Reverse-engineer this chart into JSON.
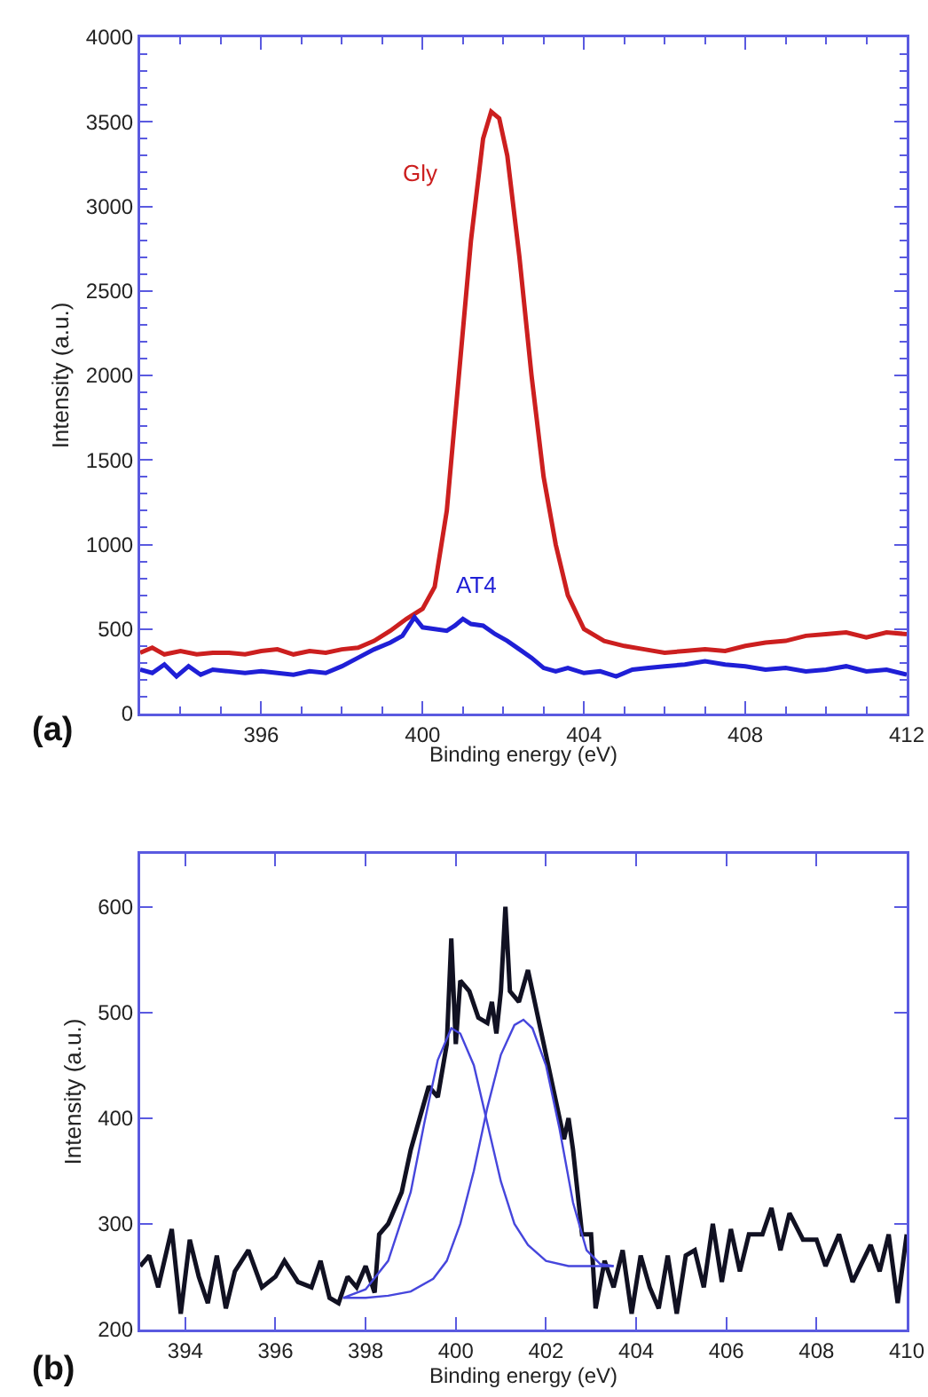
{
  "chart_data": [
    {
      "type": "line",
      "xlabel": "Binding energy (eV)",
      "ylabel": "Intensity (a.u.)",
      "annotations": [
        "(a)"
      ],
      "xlim": [
        393,
        412
      ],
      "ylim": [
        0,
        4000
      ],
      "xticks": [
        396,
        400,
        404,
        408,
        412
      ],
      "yticks": [
        0,
        500,
        1000,
        1500,
        2000,
        2500,
        3000,
        3500,
        4000
      ],
      "grid": false,
      "legend": false,
      "marker": "none",
      "line_style": "solid",
      "series": [
        {
          "name": "Gly",
          "color": "#cc1f1f",
          "x": [
            393,
            393.3,
            393.6,
            394,
            394.4,
            394.8,
            395.2,
            395.6,
            396,
            396.4,
            396.8,
            397.2,
            397.6,
            398,
            398.4,
            398.8,
            399.2,
            399.6,
            400,
            400.3,
            400.6,
            400.9,
            401.2,
            401.5,
            401.7,
            401.9,
            402.1,
            402.4,
            402.7,
            403,
            403.3,
            403.6,
            404,
            404.5,
            405,
            405.5,
            406,
            406.5,
            407,
            407.5,
            408,
            408.5,
            409,
            409.5,
            410,
            410.5,
            411,
            411.5,
            412
          ],
          "values": [
            360,
            390,
            350,
            370,
            350,
            360,
            360,
            350,
            370,
            380,
            350,
            370,
            360,
            380,
            390,
            430,
            490,
            560,
            620,
            750,
            1200,
            2000,
            2800,
            3400,
            3560,
            3520,
            3300,
            2700,
            2000,
            1400,
            1000,
            700,
            500,
            430,
            400,
            380,
            360,
            370,
            380,
            370,
            400,
            420,
            430,
            460,
            470,
            480,
            450,
            480,
            470
          ]
        },
        {
          "name": "AT4",
          "color": "#1f1fd6",
          "x": [
            393,
            393.3,
            393.6,
            393.9,
            394.2,
            394.5,
            394.8,
            395.2,
            395.6,
            396,
            396.4,
            396.8,
            397.2,
            397.6,
            398,
            398.4,
            398.8,
            399.2,
            399.5,
            399.8,
            400,
            400.3,
            400.6,
            400.8,
            401,
            401.2,
            401.5,
            401.8,
            402.1,
            402.4,
            402.7,
            403,
            403.3,
            403.6,
            404,
            404.4,
            404.8,
            405.2,
            405.6,
            406,
            406.5,
            407,
            407.5,
            408,
            408.5,
            409,
            409.5,
            410,
            410.5,
            411,
            411.5,
            412
          ],
          "values": [
            260,
            240,
            290,
            220,
            280,
            230,
            260,
            250,
            240,
            250,
            240,
            230,
            250,
            240,
            280,
            330,
            380,
            420,
            460,
            570,
            510,
            500,
            490,
            520,
            560,
            530,
            520,
            470,
            430,
            380,
            330,
            270,
            250,
            270,
            240,
            250,
            220,
            260,
            270,
            280,
            290,
            310,
            290,
            280,
            260,
            270,
            250,
            260,
            280,
            250,
            260,
            230
          ]
        }
      ]
    },
    {
      "type": "line",
      "xlabel": "Binding energy (eV)",
      "ylabel": "Intensity (a.u.)",
      "annotations": [
        "(b)"
      ],
      "xlim": [
        393,
        410
      ],
      "ylim": [
        200,
        650
      ],
      "xticks": [
        394,
        396,
        398,
        400,
        402,
        404,
        406,
        408,
        410
      ],
      "yticks": [
        200,
        300,
        400,
        500,
        600
      ],
      "grid": false,
      "legend": false,
      "marker": "none",
      "line_style": "solid",
      "series": [
        {
          "color": "#111122",
          "x": [
            393,
            393.2,
            393.4,
            393.7,
            393.9,
            394.1,
            394.3,
            394.5,
            394.7,
            394.9,
            395.1,
            395.4,
            395.7,
            396,
            396.2,
            396.5,
            396.8,
            397,
            397.2,
            397.4,
            397.6,
            397.8,
            398,
            398.2,
            398.3,
            398.5,
            398.8,
            399,
            399.2,
            399.4,
            399.6,
            399.8,
            399.9,
            400,
            400.1,
            400.3,
            400.5,
            400.7,
            400.8,
            400.9,
            401,
            401.1,
            401.2,
            401.4,
            401.6,
            401.8,
            402,
            402.2,
            402.4,
            402.5,
            402.6,
            402.8,
            403,
            403.1,
            403.3,
            403.5,
            403.7,
            403.9,
            404.1,
            404.3,
            404.5,
            404.7,
            404.9,
            405.1,
            405.3,
            405.5,
            405.7,
            405.9,
            406.1,
            406.3,
            406.5,
            406.8,
            407,
            407.2,
            407.4,
            407.7,
            408,
            408.2,
            408.5,
            408.8,
            409.2,
            409.4,
            409.6,
            409.8,
            410
          ],
          "values": [
            260,
            270,
            240,
            295,
            215,
            285,
            250,
            225,
            270,
            220,
            255,
            275,
            240,
            250,
            265,
            245,
            240,
            265,
            230,
            225,
            250,
            240,
            260,
            235,
            290,
            300,
            330,
            370,
            400,
            430,
            420,
            470,
            570,
            470,
            530,
            520,
            495,
            490,
            510,
            480,
            520,
            600,
            520,
            510,
            540,
            500,
            460,
            420,
            380,
            400,
            370,
            290,
            290,
            220,
            265,
            240,
            275,
            215,
            270,
            240,
            220,
            270,
            215,
            270,
            275,
            240,
            300,
            245,
            295,
            255,
            290,
            290,
            315,
            275,
            310,
            285,
            285,
            260,
            290,
            245,
            280,
            255,
            290,
            225,
            290
          ]
        },
        {
          "color": "#4646dc",
          "x": [
            397.5,
            398,
            398.5,
            399,
            399.3,
            399.6,
            399.9,
            400.1,
            400.4,
            400.7,
            401,
            401.3,
            401.6,
            402,
            402.5,
            403,
            403.5
          ],
          "values": [
            230,
            238,
            265,
            330,
            395,
            455,
            485,
            480,
            450,
            395,
            340,
            300,
            280,
            265,
            260,
            260,
            260
          ]
        },
        {
          "color": "#4646dc",
          "x": [
            397.5,
            398,
            398.5,
            399,
            399.5,
            399.8,
            400.1,
            400.4,
            400.7,
            401,
            401.3,
            401.5,
            401.7,
            402,
            402.3,
            402.6,
            402.9,
            403.2,
            403.5
          ],
          "values": [
            230,
            230,
            232,
            236,
            248,
            265,
            300,
            350,
            410,
            460,
            488,
            493,
            485,
            450,
            390,
            320,
            275,
            262,
            260
          ]
        }
      ]
    }
  ]
}
